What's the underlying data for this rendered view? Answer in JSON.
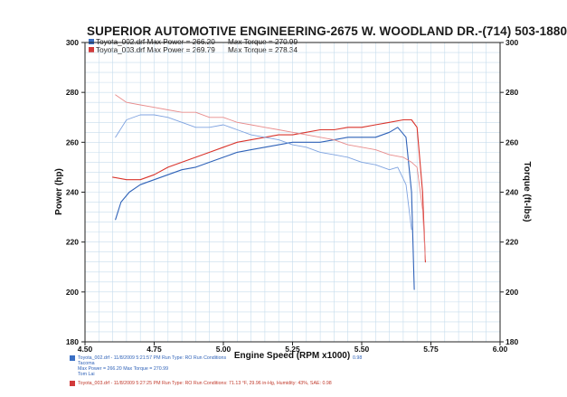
{
  "header": {
    "title": "SUPERIOR AUTOMOTIVE ENGINEERING-2675 W. WOODLAND DR.-(714) 503-1880"
  },
  "legend": [
    {
      "file": "Toyota_002.drf",
      "max_power": "Max Power = 266.20",
      "max_torque": "Max Torque = 270.99",
      "color": "#3a6fc4"
    },
    {
      "file": "Toyota_003.drf",
      "max_power": "Max Power = 269.79",
      "max_torque": "Max Torque = 278.34",
      "color": "#d23a3a"
    }
  ],
  "footer": {
    "run1": {
      "line1": "Toyota_002.drf - 11/8/2009 5:21:57 PM   Run Type: RO   Run Conditions",
      "line1_tail": "0.98",
      "line2": "Tacoma",
      "line3": "Max Power = 266.20   Max Torque = 270.99",
      "line4": "Tom Lai"
    },
    "run2": {
      "line1": "Toyota_003.drf - 11/8/2009 5:27:25 PM   Run Type: RO   Run Conditions: 71.13 °F, 29.96 in-Hg,  Humidity: 43%, SAE: 0.98"
    }
  },
  "chart_data": {
    "type": "line",
    "title": "SUPERIOR AUTOMOTIVE ENGINEERING-2675 W. WOODLAND DR.-(714) 503-1880",
    "xlabel": "Engine Speed (RPM x1000)",
    "ylabel": "Power (hp)",
    "y2label": "Torque (ft-lbs)",
    "xlim": [
      4.5,
      6.0
    ],
    "ylim": [
      180,
      300
    ],
    "y2lim": [
      180,
      300
    ],
    "x_ticks": [
      "4.50",
      "4.75",
      "5.00",
      "5.25",
      "5.50",
      "5.75",
      "6.00"
    ],
    "y_ticks": [
      "180",
      "200",
      "220",
      "240",
      "260",
      "280",
      "300"
    ],
    "y2_ticks": [
      "180",
      "200",
      "220",
      "240",
      "260",
      "280",
      "300"
    ],
    "grid": true,
    "series": [
      {
        "name": "Toyota_002.drf",
        "measure": "power",
        "color": "#2f62b8",
        "x": [
          4.61,
          4.63,
          4.66,
          4.7,
          4.75,
          4.8,
          4.85,
          4.9,
          4.95,
          5.0,
          5.05,
          5.1,
          5.15,
          5.2,
          5.25,
          5.3,
          5.35,
          5.4,
          5.45,
          5.5,
          5.55,
          5.6,
          5.63,
          5.66,
          5.68,
          5.69
        ],
        "y": [
          229,
          236,
          240,
          243,
          245,
          247,
          249,
          250,
          252,
          254,
          256,
          257,
          258,
          259,
          260,
          260,
          260,
          261,
          262,
          262,
          262,
          264,
          266,
          262,
          240,
          201
        ]
      },
      {
        "name": "Toyota_003.drf",
        "measure": "power",
        "color": "#d9342c",
        "x": [
          4.6,
          4.65,
          4.7,
          4.75,
          4.8,
          4.85,
          4.9,
          4.95,
          5.0,
          5.05,
          5.1,
          5.15,
          5.2,
          5.25,
          5.3,
          5.35,
          5.4,
          5.45,
          5.5,
          5.55,
          5.6,
          5.65,
          5.68,
          5.7,
          5.72,
          5.73
        ],
        "y": [
          246,
          245,
          245,
          247,
          250,
          252,
          254,
          256,
          258,
          260,
          261,
          262,
          263,
          263,
          264,
          265,
          265,
          266,
          266,
          267,
          268,
          269,
          269,
          266,
          240,
          212
        ]
      },
      {
        "name": "Toyota_002.drf",
        "measure": "torque",
        "color": "#7fa3e0",
        "x": [
          4.61,
          4.65,
          4.7,
          4.75,
          4.8,
          4.85,
          4.9,
          4.95,
          5.0,
          5.05,
          5.1,
          5.15,
          5.2,
          5.25,
          5.3,
          5.35,
          5.4,
          5.45,
          5.5,
          5.55,
          5.6,
          5.63,
          5.66,
          5.68
        ],
        "y": [
          262,
          269,
          271,
          271,
          270,
          268,
          266,
          266,
          267,
          265,
          263,
          262,
          261,
          259,
          258,
          256,
          255,
          254,
          252,
          251,
          249,
          250,
          243,
          225
        ]
      },
      {
        "name": "Toyota_003.drf",
        "measure": "torque",
        "color": "#e88c8c",
        "x": [
          4.61,
          4.65,
          4.7,
          4.75,
          4.8,
          4.85,
          4.9,
          4.95,
          5.0,
          5.05,
          5.1,
          5.15,
          5.2,
          5.25,
          5.3,
          5.35,
          5.4,
          5.45,
          5.5,
          5.55,
          5.6,
          5.65,
          5.68,
          5.7,
          5.72,
          5.73
        ],
        "y": [
          279,
          276,
          275,
          274,
          273,
          272,
          272,
          270,
          270,
          268,
          267,
          266,
          265,
          264,
          263,
          262,
          261,
          259,
          258,
          257,
          255,
          254,
          252,
          250,
          233,
          213
        ]
      }
    ]
  }
}
